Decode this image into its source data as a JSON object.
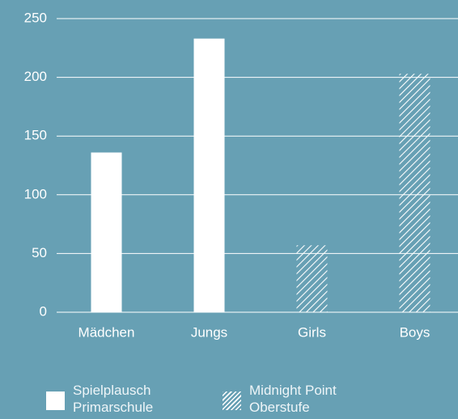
{
  "chart_data": {
    "type": "bar",
    "categories": [
      "Mädchen",
      "Jungs",
      "Girls",
      "Boys"
    ],
    "series": [
      {
        "name": "Spielplausch Primarschule",
        "color": "#ffffff",
        "pattern": "solid",
        "values": [
          136,
          233,
          null,
          null
        ]
      },
      {
        "name": "Midnight Point Oberstufe",
        "color": "#ffffff",
        "pattern": "hatch",
        "values": [
          null,
          null,
          57,
          203
        ]
      }
    ],
    "ylim": [
      0,
      250
    ],
    "yticks": [
      0,
      50,
      100,
      150,
      200,
      250
    ],
    "grid": true,
    "legend": "bottom"
  }
}
